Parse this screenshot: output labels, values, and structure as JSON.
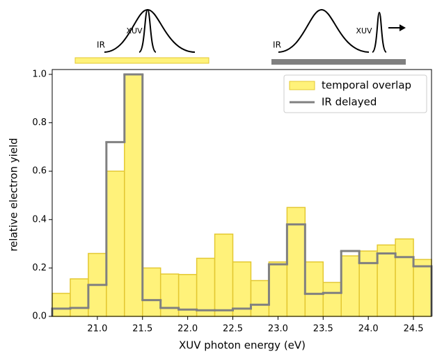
{
  "chart_data": {
    "type": "histogram",
    "xlabel": "XUV photon energy (eV)",
    "ylabel": "relative electron yield",
    "annotations": [
      "IR",
      "XUV",
      "IR",
      "XUV"
    ],
    "bins": [
      20.5,
      20.7,
      20.9,
      21.1,
      21.3,
      21.5,
      21.7,
      21.9,
      22.1,
      22.3,
      22.5,
      22.7,
      22.9,
      23.1,
      23.3,
      23.5,
      23.7,
      23.9,
      24.1,
      24.3,
      24.5,
      24.7
    ],
    "series": [
      {
        "name": "temporal overlap",
        "color": "#fff27a",
        "edgecolor": "#e3c832",
        "style": "filled",
        "values": [
          0.095,
          0.155,
          0.26,
          0.6,
          1.0,
          0.2,
          0.175,
          0.173,
          0.24,
          0.34,
          0.225,
          0.148,
          0.225,
          0.45,
          0.225,
          0.14,
          0.25,
          0.27,
          0.295,
          0.32,
          0.235
        ]
      },
      {
        "name": "IR delayed",
        "color": "#808080",
        "style": "step",
        "values": [
          0.032,
          0.035,
          0.13,
          0.72,
          1.0,
          0.067,
          0.035,
          0.028,
          0.025,
          0.025,
          0.032,
          0.048,
          0.215,
          0.38,
          0.093,
          0.097,
          0.27,
          0.22,
          0.26,
          0.245,
          0.207
        ]
      }
    ],
    "xlim": [
      20.5,
      24.7
    ],
    "ylim": [
      0,
      1.02
    ],
    "xticks": [
      {
        "value": 21.0,
        "label": "21.0"
      },
      21.5,
      {
        "value": 22.0,
        "label": "22.0"
      },
      22.5,
      {
        "value": 23.0,
        "label": "23.0"
      },
      23.5,
      {
        "value": 24.0,
        "label": "24.0"
      },
      24.5
    ],
    "yticks": [
      {
        "value": 0,
        "label": "0.0"
      },
      0.2,
      0.4,
      0.6,
      0.8,
      {
        "value": 1,
        "label": "1.0"
      }
    ],
    "legend": "upper right"
  }
}
